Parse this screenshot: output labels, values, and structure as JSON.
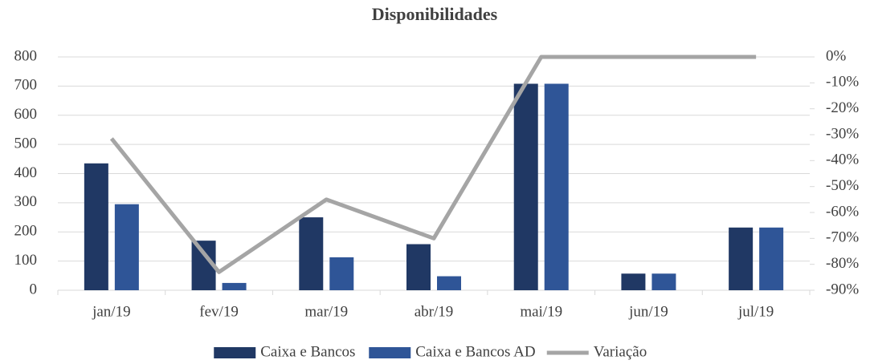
{
  "chart_data": {
    "type": "bar",
    "title": "Disponibilidades",
    "categories": [
      "jan/19",
      "fev/19",
      "mar/19",
      "abr/19",
      "mai/19",
      "jun/19",
      "jul/19"
    ],
    "series": [
      {
        "name": "Caixa e Bancos",
        "type": "bar",
        "color": "#203864",
        "values": [
          435,
          170,
          250,
          158,
          708,
          57,
          215
        ]
      },
      {
        "name": "Caixa e Bancos AD",
        "type": "bar",
        "color": "#2f5597",
        "values": [
          295,
          25,
          113,
          48,
          708,
          57,
          215
        ]
      },
      {
        "name": "Variação",
        "type": "line",
        "axis": "y2",
        "color": "#a5a5a5",
        "values": [
          -31.5,
          -83,
          -55,
          -70,
          0,
          0,
          0
        ]
      }
    ],
    "ylim": [
      0,
      800
    ],
    "yticks": [
      0,
      100,
      200,
      300,
      400,
      500,
      600,
      700,
      800
    ],
    "y2lim": [
      -90,
      0
    ],
    "y2ticks": [
      {
        "value": 0,
        "label": "0%"
      },
      {
        "value": -10,
        "label": "-10%"
      },
      {
        "value": -20,
        "label": "-20%"
      },
      {
        "value": -30,
        "label": "-30%"
      },
      {
        "value": -40,
        "label": "-40%"
      },
      {
        "value": -50,
        "label": "-50%"
      },
      {
        "value": -60,
        "label": "-60%"
      },
      {
        "value": -70,
        "label": "-70%"
      },
      {
        "value": -80,
        "label": "-80%"
      },
      {
        "value": -90,
        "label": "-90%"
      }
    ],
    "grid": true,
    "legend": "bottom"
  }
}
